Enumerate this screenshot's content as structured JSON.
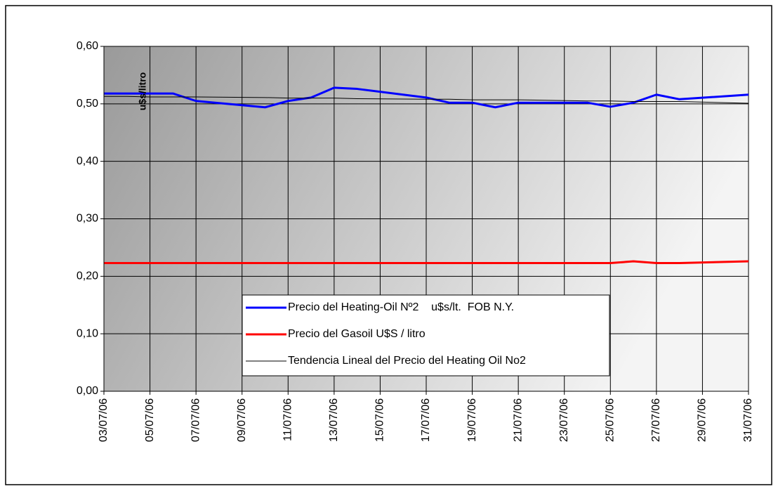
{
  "chart_data": {
    "type": "line",
    "y_label": "u$s/litro",
    "x": [
      "03/07/06",
      "04/07/06",
      "05/07/06",
      "06/07/06",
      "07/07/06",
      "10/07/06",
      "11/07/06",
      "12/07/06",
      "13/07/06",
      "14/07/06",
      "17/07/06",
      "18/07/06",
      "19/07/06",
      "20/07/06",
      "21/07/06",
      "24/07/06",
      "25/07/06",
      "26/07/06",
      "27/07/06",
      "28/07/06",
      "31/07/06"
    ],
    "series": [
      {
        "name": "Precio del Heating-Oil Nº2    u$s/lt.  FOB N.Y.",
        "color": "#0000ff",
        "width": 3,
        "values": [
          0.518,
          0.518,
          0.518,
          0.518,
          0.505,
          0.494,
          0.505,
          0.511,
          0.528,
          0.526,
          0.511,
          0.502,
          0.502,
          0.494,
          0.502,
          0.502,
          0.495,
          0.502,
          0.516,
          0.508,
          0.516
        ]
      },
      {
        "name": "Precio del Gasoil U$S / litro",
        "color": "#ff0000",
        "width": 3,
        "values": [
          0.223,
          0.223,
          0.223,
          0.223,
          0.223,
          0.223,
          0.223,
          0.223,
          0.223,
          0.223,
          0.223,
          0.223,
          0.223,
          0.223,
          0.223,
          0.223,
          0.223,
          0.226,
          0.223,
          0.223,
          0.226
        ]
      },
      {
        "name": "Tendencia Lineal del Precio del Heating Oil No2",
        "color": "#000000",
        "width": 1,
        "values": [
          0.513,
          0.513,
          0.512,
          0.512,
          0.512,
          0.511,
          0.51,
          0.51,
          0.51,
          0.509,
          0.508,
          0.508,
          0.507,
          0.507,
          0.507,
          0.505,
          0.505,
          0.504,
          0.504,
          0.504,
          0.501
        ]
      }
    ],
    "xlim": [
      "03/07/06",
      "31/07/06"
    ],
    "xticks": [
      "03/07/06",
      "05/07/06",
      "07/07/06",
      "09/07/06",
      "11/07/06",
      "13/07/06",
      "15/07/06",
      "17/07/06",
      "19/07/06",
      "21/07/06",
      "23/07/06",
      "25/07/06",
      "27/07/06",
      "29/07/06",
      "31/07/06"
    ],
    "ylim": [
      0,
      0.6
    ],
    "yticks": [
      {
        "value": 0,
        "label": "0,00"
      },
      {
        "value": 0.1,
        "label": "0,10"
      },
      {
        "value": 0.2,
        "label": "0,20"
      },
      {
        "value": 0.3,
        "label": "0,30"
      },
      {
        "value": 0.4,
        "label": "0,40"
      },
      {
        "value": 0.5,
        "label": "0,50"
      },
      {
        "value": 0.6,
        "label": "0,60"
      }
    ],
    "grid": true
  }
}
